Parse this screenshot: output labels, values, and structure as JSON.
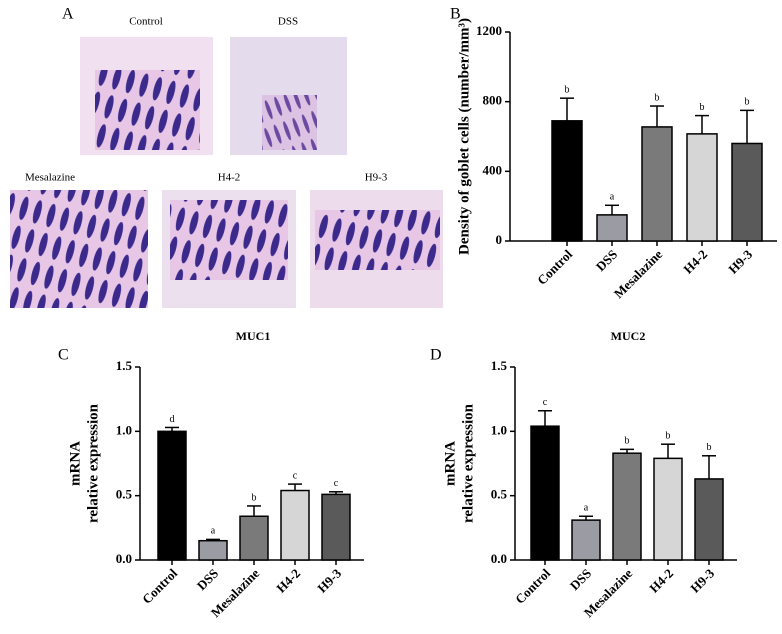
{
  "panel_labels": [
    "A",
    "B",
    "C",
    "D"
  ],
  "images": [
    "Control",
    "DSS",
    "Mesalazine",
    "H4-2",
    "H9-3"
  ],
  "chart_data": [
    {
      "type": "bar",
      "ylabel": [
        "Density of goblet cells (number/mm³)"
      ],
      "categories": [
        "Control",
        "DSS",
        "Mesalazine",
        "H4-2",
        "H9-3"
      ],
      "values": [
        690,
        150,
        655,
        615,
        560
      ],
      "errors": [
        130,
        55,
        120,
        105,
        190
      ],
      "annotations": [
        "b",
        "a",
        "b",
        "b",
        "b"
      ],
      "colors": [
        "#000000",
        "#9a9ba3",
        "#7a7a7a",
        "#d6d6d6",
        "#5a5a5a"
      ],
      "ylim": [
        0,
        1200
      ],
      "yticks": [
        0,
        400,
        800,
        1200
      ]
    },
    {
      "type": "bar",
      "title": "MUC1",
      "ylabel": [
        "mRNA",
        "relative expression"
      ],
      "categories": [
        "Control",
        "DSS",
        "Mesalazine",
        "H4-2",
        "H9-3"
      ],
      "values": [
        1.0,
        0.15,
        0.34,
        0.54,
        0.51
      ],
      "errors": [
        0.03,
        0.01,
        0.08,
        0.05,
        0.02
      ],
      "annotations": [
        "d",
        "a",
        "b",
        "c",
        "c"
      ],
      "colors": [
        "#000000",
        "#9a9ba3",
        "#7a7a7a",
        "#d6d6d6",
        "#5a5a5a"
      ],
      "ylim": [
        0,
        1.5
      ],
      "yticks": [
        {
          "value": 0,
          "label": "0.0"
        },
        0.5,
        {
          "value": 1,
          "label": "1.0"
        },
        1.5
      ]
    },
    {
      "type": "bar",
      "title": "MUC2",
      "ylabel": [
        "mRNA",
        "relative expression"
      ],
      "categories": [
        "Control",
        "DSS",
        "Mesalazine",
        "H4-2",
        "H9-3"
      ],
      "values": [
        1.04,
        0.31,
        0.83,
        0.79,
        0.63
      ],
      "errors": [
        0.12,
        0.03,
        0.03,
        0.11,
        0.18
      ],
      "annotations": [
        "c",
        "a",
        "b",
        "b",
        "b"
      ],
      "colors": [
        "#000000",
        "#9a9ba3",
        "#7a7a7a",
        "#d6d6d6",
        "#5a5a5a"
      ],
      "ylim": [
        0,
        1.5
      ],
      "yticks": [
        {
          "value": 0,
          "label": "0.0"
        },
        0.5,
        {
          "value": 1,
          "label": "1.0"
        },
        1.5
      ]
    }
  ]
}
